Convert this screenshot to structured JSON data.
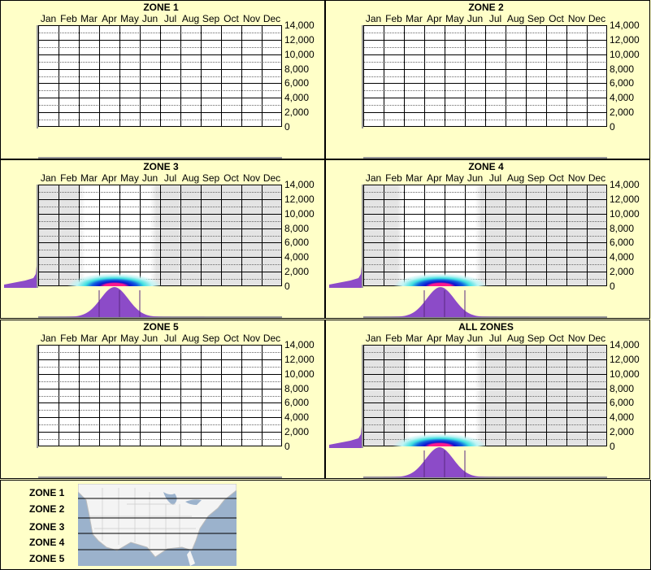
{
  "chart_data": [
    {
      "type": "heatmap",
      "title": "ZONE 1",
      "categories": [
        "Jan",
        "Feb",
        "Mar",
        "Apr",
        "May",
        "Jun",
        "Jul",
        "Aug",
        "Sep",
        "Oct",
        "Nov",
        "Dec"
      ],
      "yticks": [
        "14,000",
        "12,000",
        "10,000",
        "8,000",
        "6,000",
        "4,000",
        "2,000",
        "0"
      ],
      "ylim": [
        0,
        14000
      ],
      "active_range": null,
      "peak": null
    },
    {
      "type": "heatmap",
      "title": "ZONE 2",
      "categories": [
        "Jan",
        "Feb",
        "Mar",
        "Apr",
        "May",
        "Jun",
        "Jul",
        "Aug",
        "Sep",
        "Oct",
        "Nov",
        "Dec"
      ],
      "yticks": [
        "14,000",
        "12,000",
        "10,000",
        "8,000",
        "6,000",
        "4,000",
        "2,000",
        "0"
      ],
      "ylim": [
        0,
        14000
      ],
      "active_range": null,
      "peak": null
    },
    {
      "type": "heatmap",
      "title": "ZONE 3",
      "categories": [
        "Jan",
        "Feb",
        "Mar",
        "Apr",
        "May",
        "Jun",
        "Jul",
        "Aug",
        "Sep",
        "Oct",
        "Nov",
        "Dec"
      ],
      "yticks": [
        "14,000",
        "12,000",
        "10,000",
        "8,000",
        "6,000",
        "4,000",
        "2,000",
        "0"
      ],
      "ylim": [
        0,
        14000
      ],
      "active_range": [
        2.3,
        5.5
      ],
      "peak": {
        "month": 3.75,
        "elevation": 0
      }
    },
    {
      "type": "heatmap",
      "title": "ZONE 4",
      "categories": [
        "Jan",
        "Feb",
        "Mar",
        "Apr",
        "May",
        "Jun",
        "Jul",
        "Aug",
        "Sep",
        "Oct",
        "Nov",
        "Dec"
      ],
      "yticks": [
        "14,000",
        "12,000",
        "10,000",
        "8,000",
        "6,000",
        "4,000",
        "2,000",
        "0"
      ],
      "ylim": [
        0,
        14000
      ],
      "active_range": [
        2.0,
        5.5
      ],
      "peak": {
        "month": 3.8,
        "elevation": 0
      }
    },
    {
      "type": "heatmap",
      "title": "ZONE 5",
      "categories": [
        "Jan",
        "Feb",
        "Mar",
        "Apr",
        "May",
        "Jun",
        "Jul",
        "Aug",
        "Sep",
        "Oct",
        "Nov",
        "Dec"
      ],
      "yticks": [
        "14,000",
        "12,000",
        "10,000",
        "8,000",
        "6,000",
        "4,000",
        "2,000",
        "0"
      ],
      "ylim": [
        0,
        14000
      ],
      "active_range": null,
      "peak": null
    },
    {
      "type": "heatmap",
      "title": "ALL ZONES",
      "categories": [
        "Jan",
        "Feb",
        "Mar",
        "Apr",
        "May",
        "Jun",
        "Jul",
        "Aug",
        "Sep",
        "Oct",
        "Nov",
        "Dec"
      ],
      "yticks": [
        "14,000",
        "12,000",
        "10,000",
        "8,000",
        "6,000",
        "4,000",
        "2,000",
        "0"
      ],
      "ylim": [
        0,
        14000
      ],
      "active_range": [
        2.3,
        5.5
      ],
      "peak": {
        "month": 3.75,
        "elevation": 0
      }
    }
  ],
  "legend": {
    "zones": [
      "ZONE 1",
      "ZONE 2",
      "ZONE 3",
      "ZONE 4",
      "ZONE 5"
    ]
  },
  "colors": {
    "background": "#ffffc8",
    "inactive": "#e4e4e4",
    "distribution": "#8c4bc8",
    "peak": "#ff1a8c",
    "high": "#1010d0",
    "mid": "#40e0e0"
  }
}
